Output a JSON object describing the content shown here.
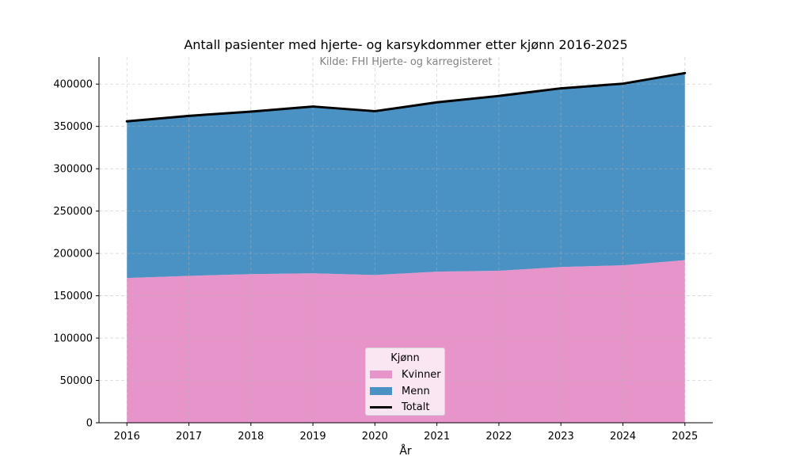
{
  "chart_data": {
    "type": "area",
    "stacked": true,
    "title": "Antall pasienter med hjerte- og karsykdommer etter kjønn 2016-2025",
    "subtitle": "Kilde: FHI Hjerte- og karregisteret",
    "xlabel": "År",
    "ylabel": "",
    "x": [
      2016,
      2017,
      2018,
      2019,
      2020,
      2021,
      2022,
      2023,
      2024,
      2025
    ],
    "x_tick_labels": [
      "2016",
      "2017",
      "2018",
      "2019",
      "2020",
      "2021",
      "2022",
      "2023",
      "2024",
      "2025"
    ],
    "ylim": [
      0,
      432000
    ],
    "y_ticks": [
      0,
      50000,
      100000,
      150000,
      200000,
      250000,
      300000,
      350000,
      400000
    ],
    "y_tick_labels": [
      "0",
      "50000",
      "100000",
      "150000",
      "200000",
      "250000",
      "300000",
      "350000",
      "400000"
    ],
    "series": [
      {
        "name": "Kvinner",
        "kind": "area",
        "color": "#e794cb",
        "values": [
          171000,
          173500,
          175500,
          176500,
          174500,
          178500,
          179500,
          184000,
          186000,
          192000
        ]
      },
      {
        "name": "Menn",
        "kind": "area",
        "color": "#4a92c4",
        "values": [
          185000,
          189000,
          192000,
          197000,
          193500,
          200000,
          206500,
          211000,
          214500,
          221000
        ]
      },
      {
        "name": "Totalt",
        "kind": "line",
        "color": "#000000",
        "values": [
          356000,
          362500,
          367500,
          373500,
          368000,
          378500,
          386000,
          395000,
          400500,
          413000
        ]
      }
    ],
    "grid": true,
    "legend": {
      "title": "Kjønn",
      "position": "bottom-center"
    }
  }
}
